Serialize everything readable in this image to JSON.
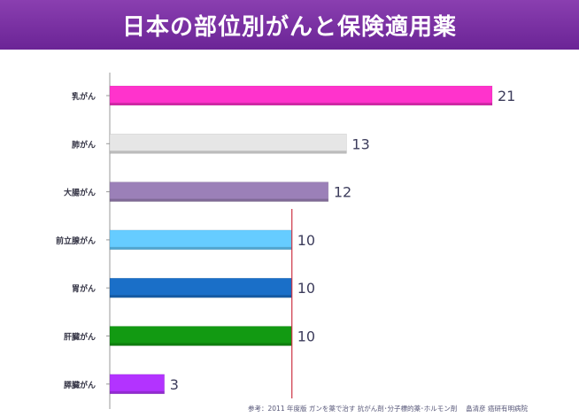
{
  "title": "日本の部位別がんと保険適用薬",
  "footnote": "参考：2011 年度版 ガンを薬で治す 抗がん剤･分子標的薬･ホルモン剤 　畠清彦 癌研有明病院",
  "chart_data": {
    "type": "bar",
    "orientation": "horizontal",
    "categories": [
      "乳がん",
      "肺がん",
      "大腸がん",
      "前立腺がん",
      "胃がん",
      "肝臓がん",
      "膵臓がん"
    ],
    "values": [
      21,
      13,
      12,
      10,
      10,
      10,
      3
    ],
    "colors": [
      "#ff33cc",
      "#e6e6e6",
      "#9b80b8",
      "#66ccff",
      "#1a6fc8",
      "#129a12",
      "#b333ff"
    ],
    "reference_line": {
      "value": 10,
      "color": "#cc3344"
    },
    "xlim": [
      0,
      21
    ],
    "grid": false,
    "data_labels": true
  }
}
